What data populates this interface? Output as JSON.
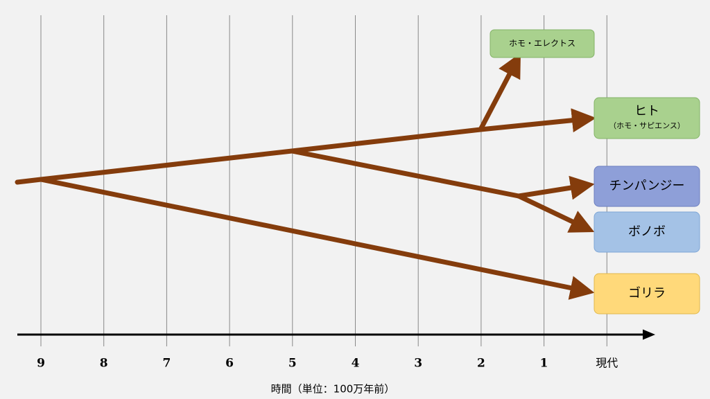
{
  "axis": {
    "ticks": [
      "9",
      "8",
      "7",
      "6",
      "5",
      "4",
      "3",
      "2",
      "1",
      "現代"
    ],
    "title": "時間（単位：100万年前）"
  },
  "nodes": [
    {
      "label": "ホモ・エレクトス"
    },
    {
      "label": "ヒト",
      "sublabel": "（ホモ・サピエンス）"
    },
    {
      "label": "チンパンジー"
    },
    {
      "label": "ボノボ"
    },
    {
      "label": "ゴリラ"
    }
  ]
}
